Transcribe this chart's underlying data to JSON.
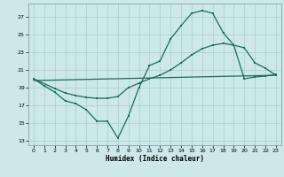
{
  "xlabel": "Humidex (Indice chaleur)",
  "bg_color": "#cce8e8",
  "grid_color": "#aacece",
  "line_color": "#1a6b5a",
  "xlim": [
    -0.5,
    23.5
  ],
  "ylim": [
    12.5,
    28.5
  ],
  "xticks": [
    0,
    1,
    2,
    3,
    4,
    5,
    6,
    7,
    8,
    9,
    10,
    11,
    12,
    13,
    14,
    15,
    16,
    17,
    18,
    19,
    20,
    21,
    22,
    23
  ],
  "yticks": [
    13,
    15,
    17,
    19,
    21,
    23,
    25,
    27
  ],
  "line1_x": [
    0,
    1,
    2,
    3,
    4,
    5,
    6,
    7,
    8,
    9,
    10,
    11,
    12,
    13,
    14,
    15,
    16,
    17,
    18,
    19,
    20,
    21,
    22,
    23
  ],
  "line1_y": [
    20.0,
    19.2,
    18.5,
    17.5,
    17.2,
    16.5,
    15.2,
    15.2,
    13.3,
    15.8,
    19.0,
    21.5,
    22.0,
    24.5,
    26.0,
    27.4,
    27.7,
    27.4,
    25.2,
    23.8,
    23.5,
    21.8,
    21.2,
    20.4
  ],
  "line2_x": [
    0,
    2,
    3,
    4,
    5,
    6,
    7,
    8,
    9,
    10,
    11,
    12,
    13,
    14,
    15,
    16,
    17,
    18,
    19,
    20,
    21,
    22,
    23
  ],
  "line2_y": [
    20.0,
    18.9,
    18.4,
    18.1,
    17.9,
    17.8,
    17.8,
    18.0,
    19.0,
    19.5,
    20.0,
    20.4,
    21.0,
    21.8,
    22.7,
    23.4,
    23.8,
    24.0,
    23.8,
    20.0,
    20.2,
    20.3,
    20.5
  ],
  "line3_x": [
    0,
    23
  ],
  "line3_y": [
    19.8,
    20.4
  ]
}
